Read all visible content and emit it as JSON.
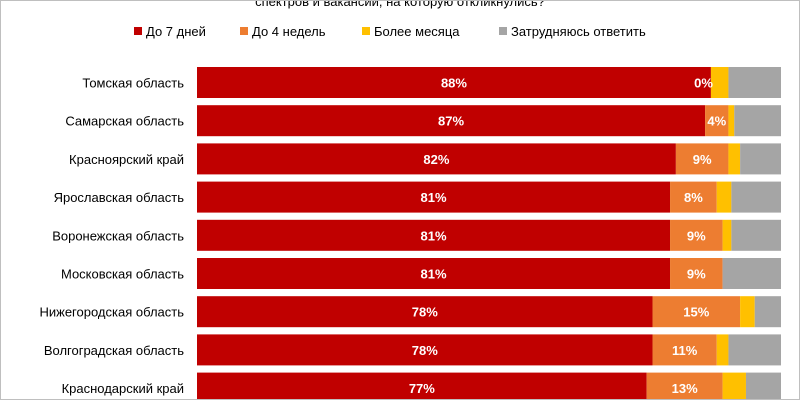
{
  "chart_data": {
    "type": "bar",
    "orientation": "horizontal",
    "stacked": true,
    "title": "спектров и вакансий, на которую откликнулись?",
    "xlabel": "",
    "ylabel": "",
    "xlim": [
      0,
      100
    ],
    "legend_position": "top",
    "grid": false,
    "categories": [
      "Томская область",
      "Самарская область",
      "Красноярский край",
      "Ярославская область",
      "Воронежская область",
      "Московская область",
      "Нижегородская область",
      "Волгоградская область",
      "Краснодарский край"
    ],
    "series": [
      {
        "name": "До 7 дней",
        "color": "#c00000",
        "values": [
          88,
          87,
          82,
          81,
          81,
          81,
          78,
          78,
          77
        ],
        "labels": [
          "88%",
          "87%",
          "82%",
          "81%",
          "81%",
          "81%",
          "78%",
          "78%",
          "77%"
        ]
      },
      {
        "name": "До 4 недель",
        "color": "#ed7d31",
        "values": [
          0,
          4,
          9,
          8,
          9,
          9,
          15,
          11,
          13
        ],
        "labels": [
          "0%",
          "4%",
          "9%",
          "8%",
          "9%",
          "9%",
          "15%",
          "11%",
          "13%"
        ]
      },
      {
        "name": "Более месяца",
        "color": "#ffc000",
        "values": [
          3,
          1,
          2,
          2.5,
          1.5,
          0,
          2.5,
          2,
          4
        ],
        "labels": [
          "",
          "",
          "",
          "",
          "",
          "",
          "",
          "",
          ""
        ]
      },
      {
        "name": "Затрудняюсь ответить",
        "color": "#a5a5a5",
        "values": [
          9,
          8,
          7,
          8.5,
          8.5,
          10,
          4.5,
          9,
          6
        ],
        "labels": [
          "",
          "",
          "",
          "",
          "",
          "",
          "",
          "",
          ""
        ]
      }
    ]
  }
}
